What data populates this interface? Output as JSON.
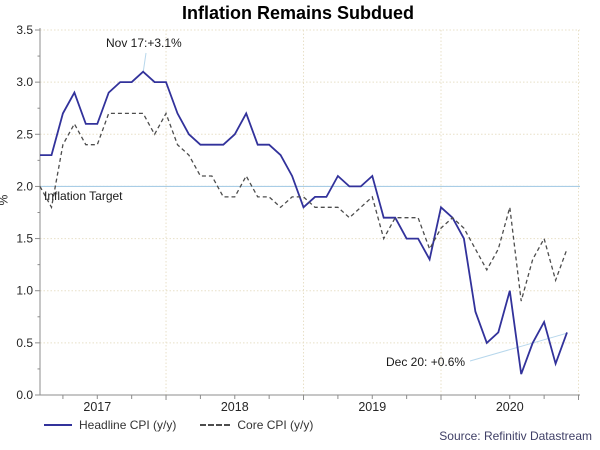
{
  "source": "Source: Refinitiv Datastream",
  "colors": {
    "headline_line": "#32329b",
    "core_line": "#4d4d4d",
    "target_line": "#a9cde6",
    "callout_line": "#b7d7ec",
    "gridline": "#e8e0c8",
    "axis": "#8c8c8c",
    "tick_text": "#262626",
    "source_text": "#3f3f66"
  },
  "chart_data": {
    "type": "line",
    "title": "Inflation Remains Subdued",
    "xlabel": "",
    "ylabel": "%",
    "ylim": [
      0.0,
      3.5
    ],
    "ytick_step": 0.5,
    "ytick_labels": [
      "0.0",
      "0.5",
      "1.0",
      "1.5",
      "2.0",
      "2.5",
      "3.0",
      "3.5"
    ],
    "xtick_labels": [
      "2017",
      "2018",
      "2019",
      "2020"
    ],
    "x_range": {
      "start": "2017-02",
      "end": "2020-12",
      "interval": "monthly"
    },
    "grid": true,
    "legend_position": "bottom-left",
    "target_line": {
      "value": 2.0,
      "label": "Inflation Target"
    },
    "series": [
      {
        "name": "Headline CPI (y/y)",
        "style": "solid",
        "color": "#32329b",
        "values": [
          2.3,
          2.3,
          2.7,
          2.9,
          2.6,
          2.6,
          2.9,
          3.0,
          3.0,
          3.1,
          3.0,
          3.0,
          2.7,
          2.5,
          2.4,
          2.4,
          2.4,
          2.5,
          2.7,
          2.4,
          2.4,
          2.3,
          2.1,
          1.8,
          1.9,
          1.9,
          2.1,
          2.0,
          2.0,
          2.1,
          1.7,
          1.7,
          1.5,
          1.5,
          1.3,
          1.8,
          1.7,
          1.5,
          0.8,
          0.5,
          0.6,
          1.0,
          0.2,
          0.5,
          0.7,
          0.3,
          0.6
        ]
      },
      {
        "name": "Core CPI (y/y)",
        "style": "dashed",
        "color": "#4d4d4d",
        "values": [
          2.0,
          1.8,
          2.4,
          2.6,
          2.4,
          2.4,
          2.7,
          2.7,
          2.7,
          2.7,
          2.5,
          2.7,
          2.4,
          2.3,
          2.1,
          2.1,
          1.9,
          1.9,
          2.1,
          1.9,
          1.9,
          1.8,
          1.9,
          1.9,
          1.8,
          1.8,
          1.8,
          1.7,
          1.8,
          1.9,
          1.5,
          1.7,
          1.7,
          1.7,
          1.4,
          1.6,
          1.7,
          1.6,
          1.4,
          1.2,
          1.4,
          1.8,
          0.9,
          1.3,
          1.5,
          1.1,
          1.4
        ]
      }
    ],
    "annotations": [
      {
        "text": "Nov 17:+3.1%",
        "points_to": {
          "series": "Headline CPI (y/y)",
          "x": "2017-11",
          "y": 3.1
        }
      },
      {
        "text": "Dec 20: +0.6%",
        "points_to": {
          "series": "Headline CPI (y/y)",
          "x": "2020-12",
          "y": 0.6
        }
      }
    ]
  }
}
